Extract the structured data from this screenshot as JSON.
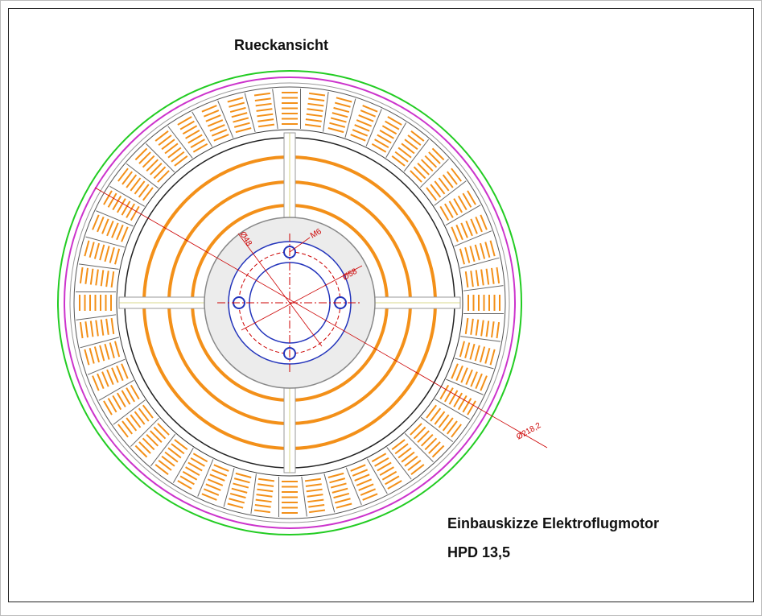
{
  "title": "Rueckansicht",
  "dimensions": {
    "inner_bolt_circle": "Ø48",
    "thread": "M6",
    "hub": "Ø58",
    "outer": "Ø218,2"
  },
  "footer": {
    "line1": "Einbauskizze Elektroflugmotor",
    "line2": "HPD 13,5"
  }
}
